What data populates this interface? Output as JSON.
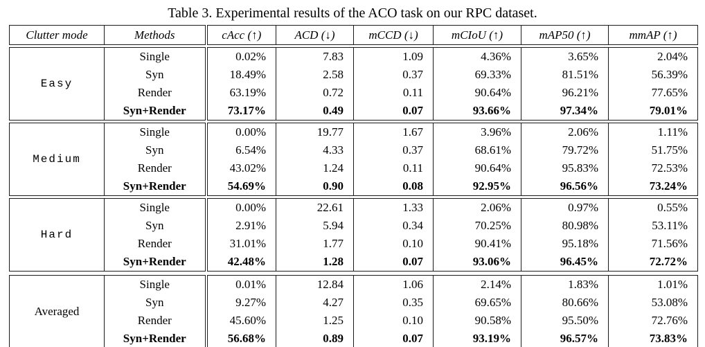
{
  "title": "Table 3. Experimental results of the ACO task on our RPC dataset.",
  "table": {
    "columns": [
      "Clutter mode",
      "Methods",
      "cAcc (↑)",
      "ACD (↓)",
      "mCCD (↓)",
      "mCIoU (↑)",
      "mAP50 (↑)",
      "mmAP (↑)"
    ],
    "groups": [
      {
        "mode": "Easy",
        "mode_font": "mono",
        "rows": [
          {
            "method": "Single",
            "bold": false,
            "values": [
              "0.02%",
              "7.83",
              "1.09",
              "4.36%",
              "3.65%",
              "2.04%"
            ]
          },
          {
            "method": "Syn",
            "bold": false,
            "values": [
              "18.49%",
              "2.58",
              "0.37",
              "69.33%",
              "81.51%",
              "56.39%"
            ]
          },
          {
            "method": "Render",
            "bold": false,
            "values": [
              "63.19%",
              "0.72",
              "0.11",
              "90.64%",
              "96.21%",
              "77.65%"
            ]
          },
          {
            "method": "Syn+Render",
            "bold": true,
            "values": [
              "73.17%",
              "0.49",
              "0.07",
              "93.66%",
              "97.34%",
              "79.01%"
            ]
          }
        ]
      },
      {
        "mode": "Medium",
        "mode_font": "mono",
        "rows": [
          {
            "method": "Single",
            "bold": false,
            "values": [
              "0.00%",
              "19.77",
              "1.67",
              "3.96%",
              "2.06%",
              "1.11%"
            ]
          },
          {
            "method": "Syn",
            "bold": false,
            "values": [
              "6.54%",
              "4.33",
              "0.37",
              "68.61%",
              "79.72%",
              "51.75%"
            ]
          },
          {
            "method": "Render",
            "bold": false,
            "values": [
              "43.02%",
              "1.24",
              "0.11",
              "90.64%",
              "95.83%",
              "72.53%"
            ]
          },
          {
            "method": "Syn+Render",
            "bold": true,
            "values": [
              "54.69%",
              "0.90",
              "0.08",
              "92.95%",
              "96.56%",
              "73.24%"
            ]
          }
        ]
      },
      {
        "mode": "Hard",
        "mode_font": "mono",
        "rows": [
          {
            "method": "Single",
            "bold": false,
            "values": [
              "0.00%",
              "22.61",
              "1.33",
              "2.06%",
              "0.97%",
              "0.55%"
            ]
          },
          {
            "method": "Syn",
            "bold": false,
            "values": [
              "2.91%",
              "5.94",
              "0.34",
              "70.25%",
              "80.98%",
              "53.11%"
            ]
          },
          {
            "method": "Render",
            "bold": false,
            "values": [
              "31.01%",
              "1.77",
              "0.10",
              "90.41%",
              "95.18%",
              "71.56%"
            ]
          },
          {
            "method": "Syn+Render",
            "bold": true,
            "values": [
              "42.48%",
              "1.28",
              "0.07",
              "93.06%",
              "96.45%",
              "72.72%"
            ]
          }
        ]
      },
      {
        "mode": "Averaged",
        "mode_font": "serif",
        "rows": [
          {
            "method": "Single",
            "bold": false,
            "values": [
              "0.01%",
              "12.84",
              "1.06",
              "2.14%",
              "1.83%",
              "1.01%"
            ]
          },
          {
            "method": "Syn",
            "bold": false,
            "values": [
              "9.27%",
              "4.27",
              "0.35",
              "69.65%",
              "80.66%",
              "53.08%"
            ]
          },
          {
            "method": "Render",
            "bold": false,
            "values": [
              "45.60%",
              "1.25",
              "0.10",
              "90.58%",
              "95.50%",
              "72.76%"
            ]
          },
          {
            "method": "Syn+Render",
            "bold": true,
            "values": [
              "56.68%",
              "0.89",
              "0.07",
              "93.19%",
              "96.57%",
              "73.83%"
            ]
          }
        ]
      }
    ]
  }
}
